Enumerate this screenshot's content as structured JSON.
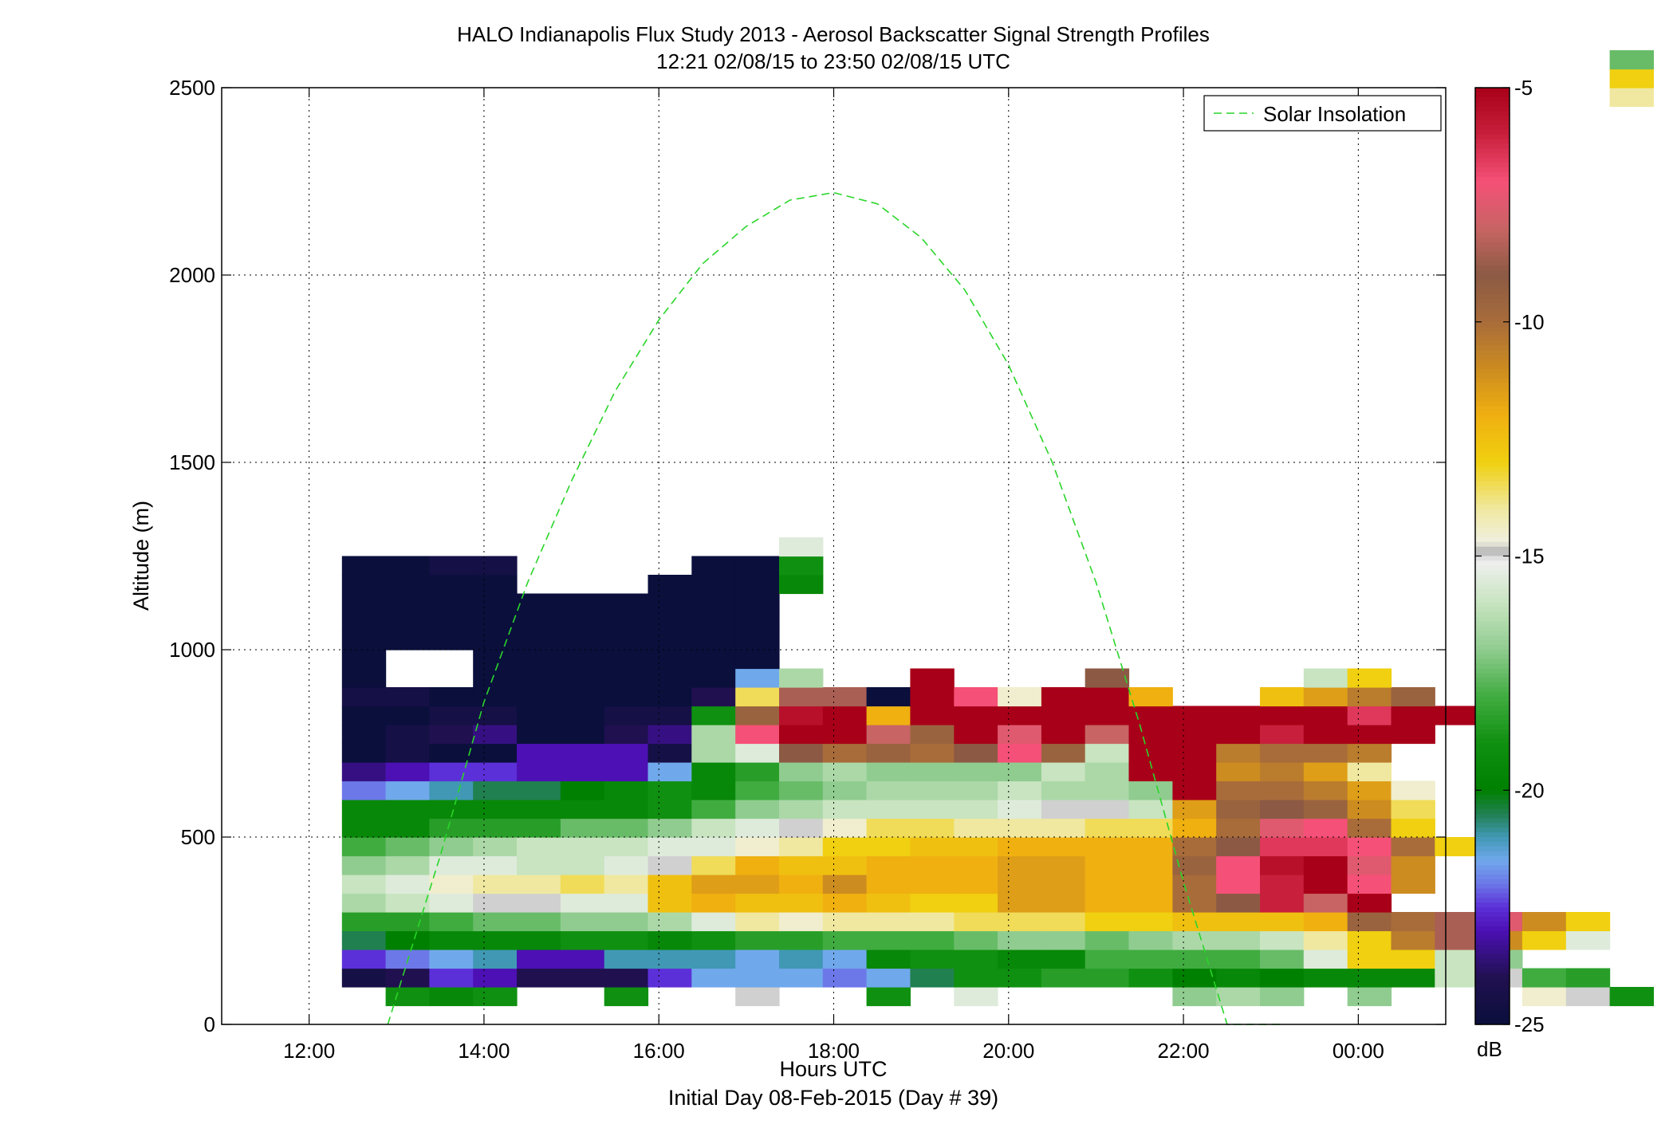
{
  "chart_data": {
    "type": "heatmap",
    "title": "HALO Indianapolis Flux Study 2013 - Aerosol Backscatter Signal Strength Profiles",
    "subtitle": "12:21 02/08/15 to 23:50 02/08/15  UTC",
    "xlabel": "Hours UTC",
    "xlabel2": "Initial Day 08-Feb-2015 (Day # 39)",
    "ylabel": "Altitude (m)",
    "xlim": [
      11.0,
      25.0
    ],
    "ylim": [
      0,
      2500
    ],
    "x_tick_values": [
      12,
      14,
      16,
      18,
      20,
      22,
      24
    ],
    "x_tick_labels": [
      "12:00",
      "14:00",
      "16:00",
      "18:00",
      "20:00",
      "22:00",
      "00:00"
    ],
    "y_tick_values": [
      0,
      500,
      1000,
      1500,
      2000,
      2500
    ],
    "y_tick_labels": [
      "0",
      "500",
      "1000",
      "1500",
      "2000",
      "2500"
    ],
    "grid": true,
    "legend": {
      "position": "top-right",
      "entries": [
        "Solar Insolation"
      ]
    },
    "colorbar": {
      "label": "dB",
      "range": [
        -25,
        -5
      ],
      "tick_values": [
        -5,
        -10,
        -15,
        -20,
        -25
      ],
      "tick_labels": [
        "-5",
        "-10",
        "-15",
        "-20",
        "-25"
      ]
    },
    "cell_time_start": 12.375,
    "cell_time_step": 0.5,
    "cell_alt_start": 50,
    "cell_alt_step": 50,
    "heatmap_rows": [
      ". -19 -19.5 -19 . . -19 . . -15 . . -19 . -15.5 . . . . -17 -16.5 -17 . -17 . . . -14.5 -15 -19",
      "-24.5 -24 -22.5 -23 -24 -24 -24 -22.5 -21.5 -21.5 -21.5 -22 -21.5 -20.5 -19 -19 -18.5 -18.5 -19 -20 -19.5 -20 -19.5 -19.5 -19.5 -16 -15 -18 -18.5",
      "-22.5 -22 -21.5 -21 -23 -23 -21 -21 -21 -21.5 -21 -21.5 -19.5 -19 -19 -19.5 -19.5 -18 -18 -18 -18 -17.5 -15.5 -13 -13 -16 -17",
      "-20.5 -20 -19.5 -19.5 -19.5 -19 -19 -19.5 -19 -18.5 -18.5 -18 -18 -18 -17.5 -17 -17 -17.5 -17 -16.5 -16.5 -16 -14 -13 -10.5 -8.5 -11 -13 -15.5",
      "-18.5 -18.5 -18 -17.5 -17.5 -17 -17 -16.5 -15.5 -14 -14.5 -14 -14 -14 -13.5 -13.5 -13.5 -13 -13 -12.5 -12.5 -12.5 -12 -9.5 -10 -8.5 -7.5 -11 -13",
      "-16.5 -16 -15.5 -15 -15 -15.5 -15.5 -12.5 -12 -12.5 -12.5 -12 -12.5 -13 -13 -11.5 -11.5 -12 -12 -10 -9 -6 -8 -5",
      "-16 -15.5 -14.5 -14 -14 -13.5 -14 -12.5 -11.5 -11.5 -12 -11 -12 -12 -12 -11.5 -11.5 -12 -12 -10 -7 -6 -5 -7 -11",
      "-17 -16.5 -15.5 -15.5 -16 -16 -15.5 -15 -13.5 -12 -12.5 -12.5 -12 -12 -12 -11.5 -11.5 -12 -12 -9.5 -7 -5.5 -5 -7.5 -11",
      "-18 -17.5 -17 -16.5 -16 -16 -16 -15.5 -15.5 -14.5 -14 -13 -13 -12.5 -12.5 -12 -12 -12 -12 -10 -9 -6.5 -6.5 -7 -10 -13",
      "-19.5 -19.5 -18.5 -18.5 -18.5 -17.5 -17.5 -17 -16 -15.5 -15 -14.5 -13.5 -13.5 -14 -14 -14 -13.5 -13.5 -12 -10 -7.5 -7 -10 -13",
      "-19.5 -19.5 -19.5 -19.5 -19.5 -19.5 -19.5 -19 -18 -17 -16.5 -16 -16 -16 -16 -15.5 -15 -15 -16 -11.5 -9.5 -9 -9.5 -11 -13.5",
      "-22 -21.5 -21 -20.5 -20.5 -20 -19.5 -19 -19.5 -18 -17.5 -17 -16.5 -16.5 -16.5 -16 -16.5 -16.5 -17 -5 -10 -10 -10.5 -11.5 -14.5",
      "-23.5 -23 -22.5 -22.5 -23 -23 -23 -21.5 -19.5 -18.5 -17 -16.5 -17 -17 -17 -17 -16 -16.5 -5 -5 -11 -10.5 -11.5 -14",
      "-25 -24.5 -25 -25 -23 -23 -23 -24.5 -16.5 -15.5 -9 -10 -9.5 -10 -9 -7 -9.5 -16 -5 -5 -10.5 -10 -10 -10.5",
      "-25 -24.5 -24 -23.5 -25 -25 -24 -23.5 -16.5 -7 -5 -5 -8 -9.5 -5 -7.5 -5 -8 -5 -5 -5 -6 -5 -5 -5",
      "-25 -25 -24.5 -24.5 -25 -25 -24.5 -24.5 -19 -9.5 -5.5 -5 -12 -5 -5 -5 -5 -5 -5 -5 -5 -5 -5 -6.5 -5 -5",
      "-24.5 -24.5 -25 -25 -25 -25 -25 -25 -24 -13.5 -8.5 -8.5 -25 -5 -7 -14.5 -5 -5 -12 . . -12.5 -11.5 -10.5 -9.5",
      "-25 . . -25 -25 -25 -25 -25 -25 -21.5 -16.5 . . -5 . . . -9 . . . . -16 -13",
      "-25 . . -25 -25 -25 -25 -25 -25 -25",
      "-25 -25 -25 -25 -25 -25 -25 -25 -25 -25",
      "-25 -25 -25 -25 -25 -25 -25 -25 -25 -25",
      "-25 -25 -25 -25 -25 -25 -25.5 -25 -25 -25",
      "-25 -25 -25 -25 . . . -25 -25 -25 -19.5",
      "-25 -25 -24.5 -24.5 . . . . -25 -25 -19",
      ". . . . . . . . . . -15.5",
      "",
      "",
      "",
      "",
      "",
      "",
      "",
      "",
      "",
      "",
      "",
      "",
      "",
      "",
      "",
      "",
      "",
      "",
      "",
      "",
      "",
      "",
      "",
      ". . . . . . . . . . . . . . . . . . . . . . . . . . . . . -14",
      ". . . . . . . . . . . . . . . . . . . . . . . . . . . . . -13",
      ". . . . . . . . . . . . . . . . . . . . . . . . . . . . . -17.5"
    ],
    "series": [
      {
        "name": "Solar Insolation",
        "x": [
          12.9,
          13.5,
          14.0,
          14.5,
          15.0,
          15.5,
          16.0,
          16.5,
          17.0,
          17.5,
          18.0,
          18.5,
          19.0,
          19.5,
          20.0,
          20.5,
          21.0,
          21.5,
          22.0,
          22.5,
          23.0,
          23.1
        ],
        "y": [
          0,
          450,
          860,
          1180,
          1450,
          1690,
          1880,
          2030,
          2130,
          2200,
          2220,
          2190,
          2100,
          1960,
          1760,
          1500,
          1180,
          800,
          380,
          0,
          -100,
          -140
        ]
      }
    ]
  }
}
